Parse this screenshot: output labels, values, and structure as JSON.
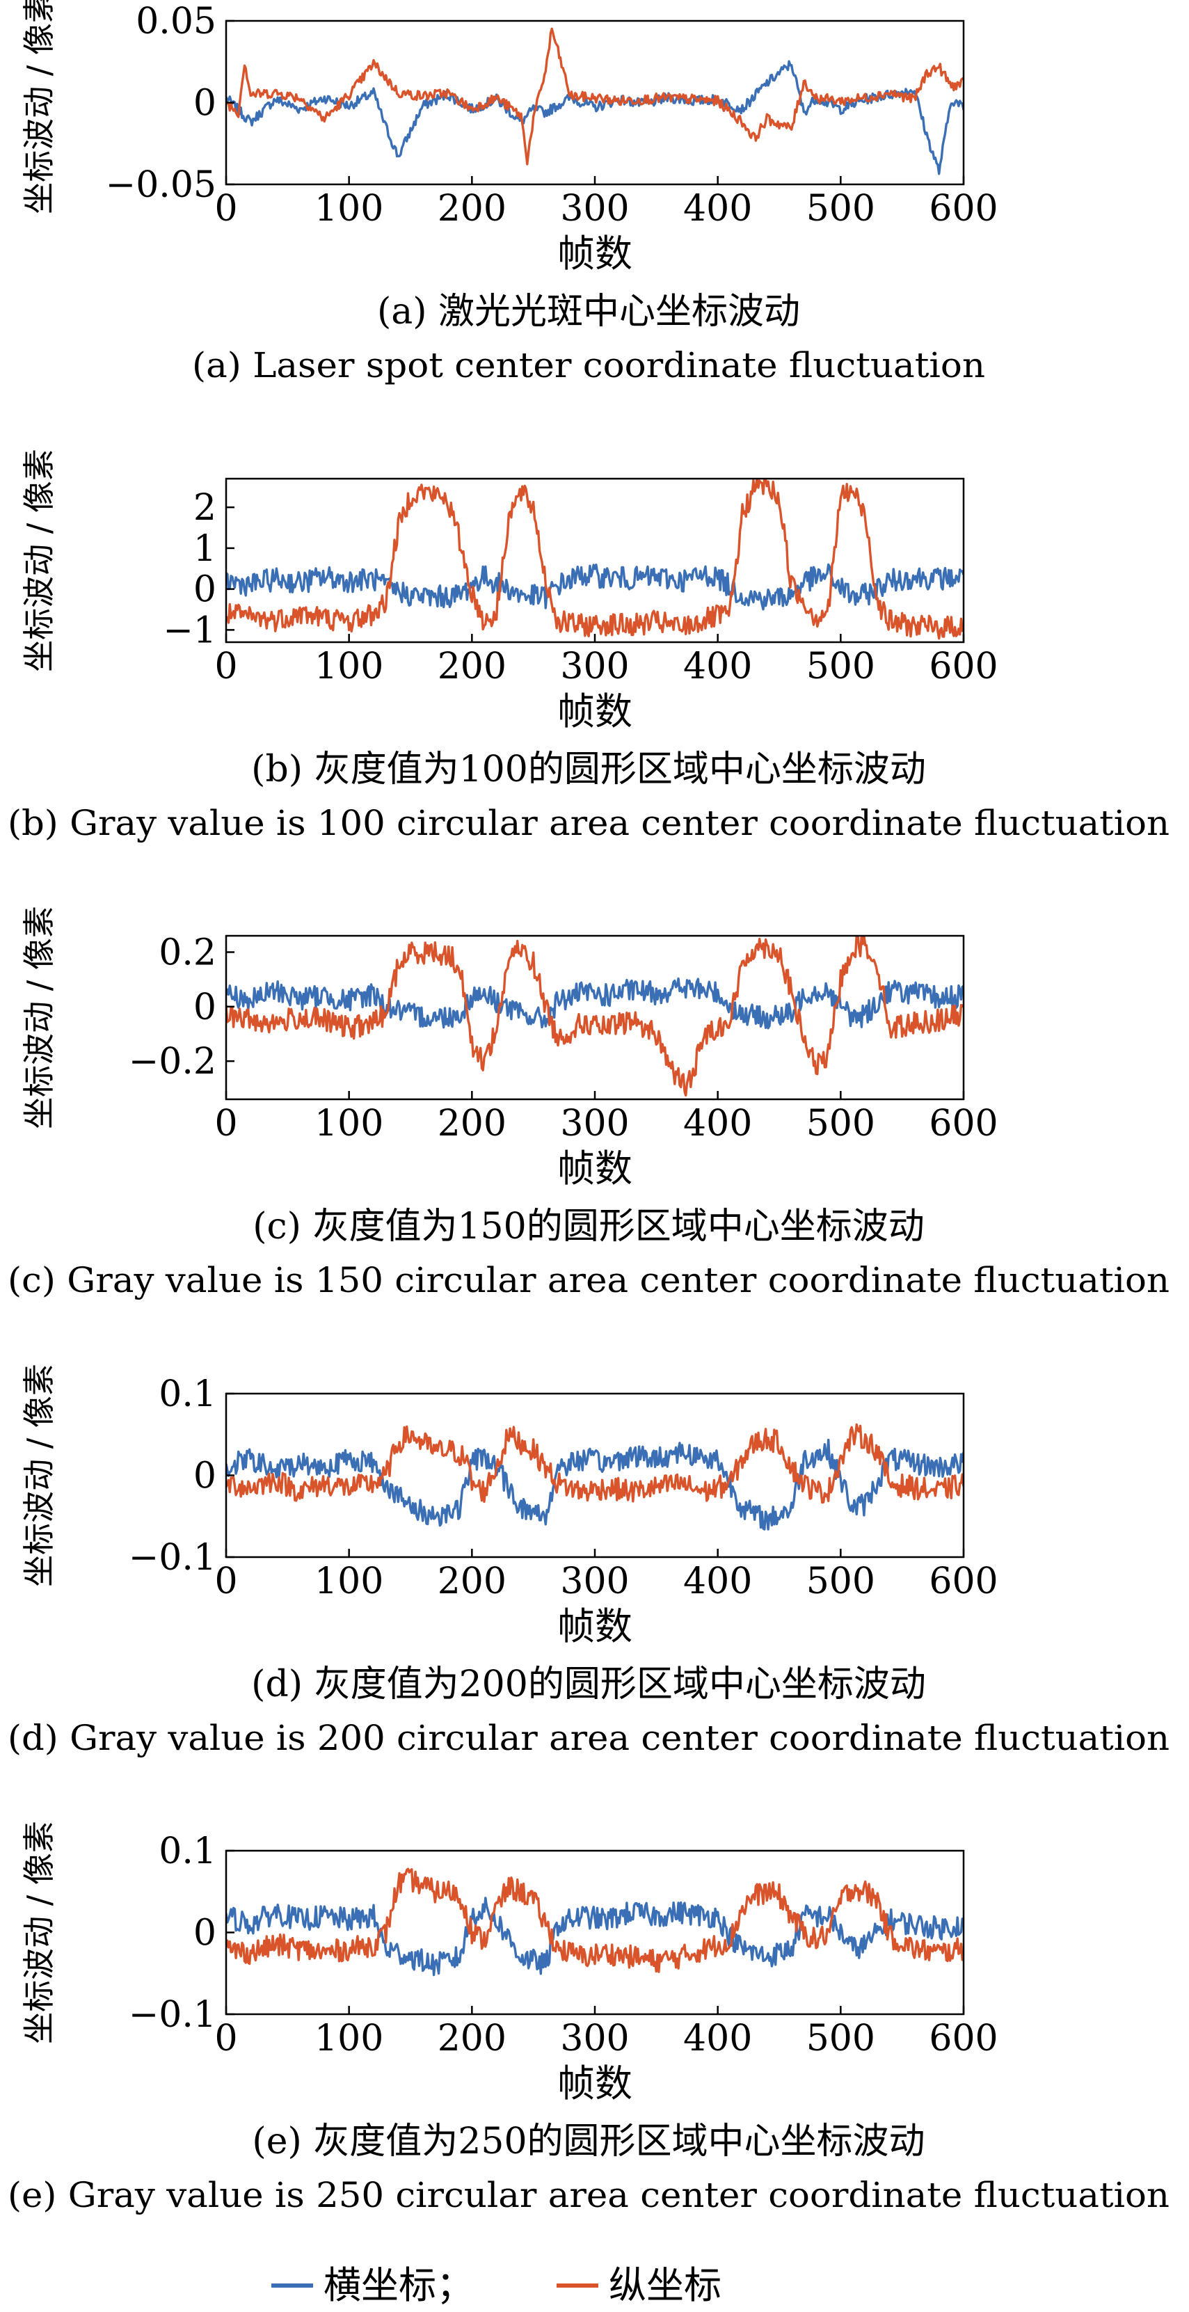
{
  "figure": {
    "legend": [
      {
        "label": "横坐标；",
        "color": "#3a6fb6"
      },
      {
        "label": "纵坐标",
        "color": "#d9542a"
      }
    ]
  },
  "chart_data": [
    {
      "type": "line",
      "caption_zh": "(a)  激光光斑中心坐标波动",
      "caption_en": "(a)  Laser spot center coordinate fluctuation",
      "xlabel": "帧数",
      "ylabel": "坐标波动 / 像素",
      "xlim": [
        0,
        600
      ],
      "ylim": [
        -0.05,
        0.05
      ],
      "xticks": [
        0,
        100,
        200,
        300,
        400,
        500,
        600
      ],
      "yticks": [
        -0.05,
        0,
        0.05
      ],
      "ytick_labels": [
        "−0.05",
        "0",
        "0.05"
      ],
      "series": [
        {
          "name": "横坐标",
          "color": "#3a6fb6",
          "x": [
            0,
            20,
            40,
            60,
            80,
            100,
            120,
            130,
            140,
            160,
            180,
            200,
            220,
            240,
            250,
            260,
            280,
            300,
            320,
            340,
            360,
            380,
            400,
            420,
            440,
            460,
            470,
            480,
            500,
            520,
            540,
            560,
            570,
            580,
            590,
            600
          ],
          "y": [
            0.003,
            -0.012,
            0.002,
            -0.004,
            0.003,
            -0.002,
            0.006,
            -0.015,
            -0.033,
            -0.002,
            0.005,
            -0.004,
            0.002,
            -0.012,
            -0.004,
            -0.006,
            0.003,
            -0.003,
            0.002,
            -0.001,
            0.003,
            0.001,
            0.002,
            -0.004,
            0.012,
            0.024,
            -0.006,
            0.003,
            -0.004,
            0.002,
            0.005,
            0.008,
            -0.02,
            -0.042,
            0.002,
            -0.003
          ]
        },
        {
          "name": "纵坐标",
          "color": "#d9542a",
          "x": [
            0,
            10,
            15,
            20,
            40,
            60,
            80,
            100,
            110,
            120,
            140,
            160,
            180,
            200,
            220,
            240,
            245,
            250,
            260,
            265,
            280,
            300,
            320,
            340,
            360,
            380,
            400,
            420,
            430,
            440,
            460,
            470,
            480,
            500,
            520,
            540,
            560,
            570,
            580,
            590,
            600
          ],
          "y": [
            0.0,
            -0.006,
            0.025,
            0.005,
            0.006,
            0.003,
            -0.01,
            0.005,
            0.014,
            0.024,
            0.006,
            0.004,
            0.006,
            -0.004,
            0.003,
            -0.008,
            -0.035,
            -0.01,
            0.02,
            0.045,
            0.004,
            0.003,
            0.001,
            0.002,
            0.003,
            0.002,
            0.001,
            -0.012,
            -0.022,
            -0.01,
            -0.016,
            0.013,
            0.003,
            0.001,
            0.003,
            0.006,
            0.002,
            0.018,
            0.022,
            0.01,
            0.012
          ]
        }
      ]
    },
    {
      "type": "line",
      "caption_zh": "(b)  灰度值为100的圆形区域中心坐标波动",
      "caption_en": "(b)  Gray value is 100 circular area center coordinate fluctuation",
      "xlabel": "帧数",
      "ylabel": "坐标波动 / 像素",
      "xlim": [
        0,
        600
      ],
      "ylim": [
        -1.3,
        2.7
      ],
      "xticks": [
        0,
        100,
        200,
        300,
        400,
        500,
        600
      ],
      "yticks": [
        -1,
        0,
        1,
        2
      ],
      "ytick_labels": [
        "−1",
        "0",
        "1",
        "2"
      ],
      "series": [
        {
          "name": "横坐标",
          "color": "#3a6fb6",
          "x": [
            0,
            20,
            40,
            60,
            80,
            100,
            120,
            130,
            150,
            170,
            190,
            200,
            210,
            220,
            240,
            260,
            270,
            290,
            310,
            330,
            350,
            370,
            390,
            400,
            410,
            420,
            440,
            460,
            470,
            490,
            500,
            510,
            520,
            540,
            560,
            580,
            600
          ],
          "y": [
            0.2,
            0.1,
            0.25,
            0.15,
            0.3,
            0.2,
            0.25,
            0.05,
            -0.15,
            -0.2,
            -0.15,
            0.1,
            0.3,
            0.15,
            -0.15,
            -0.2,
            0.1,
            0.35,
            0.3,
            0.25,
            0.3,
            0.2,
            0.35,
            0.3,
            0.05,
            -0.15,
            -0.25,
            -0.15,
            0.2,
            0.35,
            0.05,
            -0.2,
            -0.15,
            0.2,
            0.3,
            0.25,
            0.3
          ]
        },
        {
          "name": "纵坐标",
          "color": "#d9542a",
          "x": [
            0,
            20,
            40,
            60,
            80,
            100,
            120,
            130,
            140,
            150,
            160,
            180,
            190,
            200,
            210,
            220,
            230,
            240,
            250,
            260,
            270,
            290,
            310,
            330,
            350,
            370,
            390,
            410,
            420,
            430,
            440,
            450,
            460,
            480,
            490,
            500,
            510,
            520,
            530,
            540,
            560,
            580,
            600
          ],
          "y": [
            -0.6,
            -0.7,
            -0.75,
            -0.6,
            -0.7,
            -0.8,
            -0.6,
            -0.3,
            1.5,
            2.3,
            2.4,
            2.2,
            1.2,
            -0.1,
            -0.8,
            -0.6,
            1.8,
            2.35,
            2.0,
            0.2,
            -0.8,
            -0.9,
            -0.85,
            -0.9,
            -0.8,
            -0.95,
            -0.75,
            -0.6,
            1.8,
            2.5,
            2.55,
            2.2,
            0.1,
            -0.7,
            -0.5,
            2.3,
            2.4,
            1.8,
            -0.3,
            -0.8,
            -0.9,
            -0.95,
            -0.9
          ]
        }
      ]
    },
    {
      "type": "line",
      "caption_zh": "(c)  灰度值为150的圆形区域中心坐标波动",
      "caption_en": "(c)  Gray value is 150 circular area center coordinate fluctuation",
      "xlabel": "帧数",
      "ylabel": "坐标波动 / 像素",
      "xlim": [
        0,
        600
      ],
      "ylim": [
        -0.34,
        0.26
      ],
      "xticks": [
        0,
        100,
        200,
        300,
        400,
        500,
        600
      ],
      "yticks": [
        -0.2,
        0,
        0.2
      ],
      "ytick_labels": [
        "−0.2",
        "0",
        "0.2"
      ],
      "series": [
        {
          "name": "横坐标",
          "color": "#3a6fb6",
          "x": [
            0,
            20,
            40,
            60,
            80,
            100,
            120,
            130,
            150,
            170,
            190,
            200,
            210,
            220,
            240,
            260,
            270,
            290,
            310,
            330,
            350,
            370,
            390,
            400,
            410,
            420,
            440,
            460,
            470,
            490,
            500,
            510,
            520,
            540,
            560,
            580,
            600
          ],
          "y": [
            0.05,
            0.02,
            0.06,
            0.03,
            0.04,
            0.02,
            0.05,
            0.0,
            -0.03,
            -0.04,
            -0.03,
            0.04,
            0.05,
            0.02,
            -0.03,
            -0.05,
            0.02,
            0.05,
            0.04,
            0.06,
            0.05,
            0.07,
            0.06,
            0.05,
            0.0,
            -0.03,
            -0.04,
            -0.03,
            0.05,
            0.06,
            0.0,
            -0.04,
            -0.03,
            0.06,
            0.05,
            0.03,
            0.04
          ]
        },
        {
          "name": "纵坐标",
          "color": "#d9542a",
          "x": [
            0,
            20,
            40,
            60,
            80,
            100,
            120,
            130,
            140,
            150,
            170,
            185,
            195,
            200,
            210,
            220,
            230,
            240,
            250,
            260,
            270,
            290,
            310,
            330,
            350,
            365,
            375,
            390,
            410,
            420,
            430,
            440,
            450,
            460,
            470,
            480,
            490,
            500,
            510,
            520,
            530,
            540,
            560,
            580,
            600
          ],
          "y": [
            -0.03,
            -0.05,
            -0.06,
            -0.04,
            -0.05,
            -0.08,
            -0.06,
            -0.02,
            0.15,
            0.2,
            0.2,
            0.18,
            0.05,
            -0.15,
            -0.2,
            -0.08,
            0.18,
            0.21,
            0.16,
            0.0,
            -0.12,
            -0.06,
            -0.08,
            -0.05,
            -0.1,
            -0.25,
            -0.3,
            -0.1,
            -0.05,
            0.15,
            0.22,
            0.22,
            0.2,
            0.05,
            -0.12,
            -0.22,
            -0.18,
            0.1,
            0.22,
            0.23,
            0.15,
            -0.08,
            -0.06,
            -0.05,
            -0.03
          ]
        }
      ]
    },
    {
      "type": "line",
      "caption_zh": "(d)  灰度值为200的圆形区域中心坐标波动",
      "caption_en": "(d)  Gray value is 200 circular area center coordinate fluctuation",
      "xlabel": "帧数",
      "ylabel": "坐标波动 / 像素",
      "xlim": [
        0,
        600
      ],
      "ylim": [
        -0.1,
        0.1
      ],
      "xticks": [
        0,
        100,
        200,
        300,
        400,
        500,
        600
      ],
      "yticks": [
        -0.1,
        0,
        0.1
      ],
      "ytick_labels": [
        "−0.1",
        "0",
        "0.1"
      ],
      "series": [
        {
          "name": "横坐标",
          "color": "#3a6fb6",
          "x": [
            0,
            20,
            40,
            60,
            80,
            100,
            120,
            130,
            150,
            170,
            190,
            200,
            210,
            220,
            240,
            260,
            270,
            290,
            310,
            330,
            350,
            370,
            390,
            400,
            410,
            420,
            440,
            460,
            470,
            490,
            500,
            510,
            520,
            540,
            560,
            580,
            600
          ],
          "y": [
            0.01,
            0.02,
            0.005,
            0.015,
            0.01,
            0.02,
            0.015,
            -0.01,
            -0.04,
            -0.05,
            -0.04,
            0.015,
            0.025,
            0.01,
            -0.04,
            -0.05,
            0.01,
            0.02,
            0.015,
            0.025,
            0.02,
            0.03,
            0.02,
            0.02,
            -0.01,
            -0.04,
            -0.055,
            -0.04,
            0.02,
            0.03,
            -0.005,
            -0.04,
            -0.035,
            0.02,
            0.015,
            0.01,
            0.015
          ]
        },
        {
          "name": "纵坐标",
          "color": "#d9542a",
          "x": [
            0,
            20,
            40,
            60,
            80,
            100,
            120,
            130,
            140,
            150,
            170,
            185,
            195,
            200,
            210,
            220,
            230,
            240,
            250,
            260,
            270,
            290,
            310,
            330,
            350,
            370,
            390,
            410,
            420,
            430,
            440,
            450,
            460,
            470,
            480,
            490,
            500,
            510,
            520,
            530,
            540,
            560,
            580,
            600
          ],
          "y": [
            -0.01,
            -0.015,
            -0.005,
            -0.02,
            -0.01,
            -0.015,
            -0.01,
            0.0,
            0.04,
            0.05,
            0.03,
            0.03,
            0.02,
            -0.01,
            -0.02,
            0.01,
            0.05,
            0.04,
            0.03,
            0.01,
            -0.01,
            -0.02,
            -0.015,
            -0.02,
            -0.015,
            -0.01,
            -0.02,
            -0.01,
            0.02,
            0.04,
            0.045,
            0.04,
            0.01,
            -0.01,
            -0.02,
            -0.02,
            0.02,
            0.05,
            0.045,
            0.03,
            -0.01,
            -0.015,
            -0.02,
            -0.01
          ]
        }
      ]
    },
    {
      "type": "line",
      "caption_zh": "(e)  灰度值为250的圆形区域中心坐标波动",
      "caption_en": "(e)  Gray value is 250 circular area center coordinate fluctuation",
      "xlabel": "帧数",
      "ylabel": "坐标波动 / 像素",
      "xlim": [
        0,
        600
      ],
      "ylim": [
        -0.1,
        0.1
      ],
      "xticks": [
        0,
        100,
        200,
        300,
        400,
        500,
        600
      ],
      "yticks": [
        -0.1,
        0,
        0.1
      ],
      "ytick_labels": [
        "−0.1",
        "0",
        "0.1"
      ],
      "series": [
        {
          "name": "横坐标",
          "color": "#3a6fb6",
          "x": [
            0,
            20,
            40,
            60,
            80,
            100,
            120,
            130,
            150,
            170,
            190,
            200,
            210,
            220,
            240,
            260,
            270,
            290,
            310,
            330,
            350,
            370,
            390,
            400,
            410,
            420,
            440,
            460,
            470,
            490,
            500,
            510,
            520,
            540,
            560,
            580,
            600
          ],
          "y": [
            0.02,
            0.01,
            0.025,
            0.015,
            0.02,
            0.015,
            0.02,
            -0.02,
            -0.03,
            -0.04,
            -0.03,
            0.02,
            0.03,
            0.015,
            -0.03,
            -0.04,
            0.01,
            0.02,
            0.015,
            0.025,
            0.02,
            0.025,
            0.02,
            0.02,
            -0.005,
            -0.02,
            -0.03,
            -0.02,
            0.02,
            0.02,
            0.0,
            -0.02,
            -0.015,
            0.015,
            0.01,
            0.005,
            0.01
          ]
        },
        {
          "name": "纵坐标",
          "color": "#d9542a",
          "x": [
            0,
            20,
            40,
            60,
            80,
            100,
            120,
            130,
            140,
            150,
            170,
            185,
            195,
            200,
            210,
            220,
            230,
            240,
            250,
            260,
            270,
            290,
            310,
            330,
            350,
            370,
            390,
            410,
            420,
            430,
            440,
            450,
            460,
            470,
            480,
            490,
            500,
            510,
            520,
            530,
            540,
            560,
            580,
            600
          ],
          "y": [
            -0.02,
            -0.025,
            -0.015,
            -0.02,
            -0.025,
            -0.02,
            -0.015,
            0.0,
            0.06,
            0.065,
            0.05,
            0.05,
            0.03,
            0.0,
            -0.01,
            0.03,
            0.055,
            0.05,
            0.04,
            0.01,
            -0.02,
            -0.03,
            -0.025,
            -0.03,
            -0.035,
            -0.03,
            -0.02,
            -0.01,
            0.03,
            0.045,
            0.05,
            0.045,
            0.02,
            0.0,
            -0.01,
            0.0,
            0.04,
            0.055,
            0.05,
            0.04,
            -0.005,
            -0.02,
            -0.025,
            -0.02
          ]
        }
      ]
    }
  ]
}
